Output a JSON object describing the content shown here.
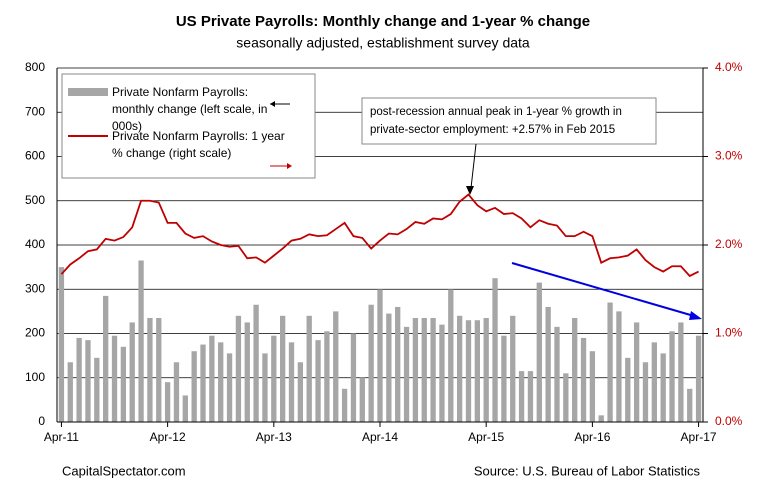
{
  "chart_data": {
    "type": "bar",
    "title": "US Private Payrolls: Monthly change and 1-year % change",
    "subtitle": "seasonally adjusted, establishment survey data",
    "categories": [
      "Apr-11",
      null,
      null,
      null,
      null,
      null,
      null,
      null,
      null,
      null,
      null,
      null,
      "Apr-12",
      null,
      null,
      null,
      null,
      null,
      null,
      null,
      null,
      null,
      null,
      null,
      "Apr-13",
      null,
      null,
      null,
      null,
      null,
      null,
      null,
      null,
      null,
      null,
      null,
      "Apr-14",
      null,
      null,
      null,
      null,
      null,
      null,
      null,
      null,
      null,
      null,
      null,
      "Apr-15",
      null,
      null,
      null,
      null,
      null,
      null,
      null,
      null,
      null,
      null,
      null,
      "Apr-16",
      null,
      null,
      null,
      null,
      null,
      null,
      null,
      null,
      null,
      null,
      null,
      "Apr-17"
    ],
    "series": [
      {
        "name": "Private Nonfarm Payrolls: monthly change (left scale, in 000s)",
        "type": "bar",
        "color": "#a6a6a6",
        "values": [
          350,
          135,
          190,
          185,
          145,
          285,
          195,
          170,
          225,
          365,
          235,
          235,
          90,
          135,
          60,
          160,
          175,
          195,
          180,
          155,
          240,
          225,
          265,
          155,
          195,
          240,
          180,
          135,
          240,
          185,
          205,
          250,
          75,
          200,
          100,
          265,
          300,
          245,
          260,
          215,
          235,
          235,
          235,
          220,
          300,
          240,
          230,
          230,
          235,
          325,
          195,
          240,
          115,
          115,
          315,
          260,
          215,
          110,
          235,
          190,
          160,
          15,
          270,
          250,
          145,
          225,
          135,
          180,
          155,
          205,
          225,
          75,
          195
        ]
      },
      {
        "name": "Private Nonfarm Payrolls:  1 year % change (right scale)",
        "type": "line",
        "axis": "y2",
        "color": "#c00000",
        "values": [
          1.67,
          1.78,
          1.85,
          1.93,
          1.95,
          2.07,
          2.05,
          2.09,
          2.2,
          2.5,
          2.5,
          2.48,
          2.25,
          2.25,
          2.13,
          2.08,
          2.1,
          2.04,
          2.0,
          1.98,
          1.99,
          1.85,
          1.86,
          1.8,
          1.88,
          1.96,
          2.05,
          2.07,
          2.12,
          2.1,
          2.11,
          2.18,
          2.25,
          2.1,
          2.08,
          1.96,
          2.05,
          2.13,
          2.12,
          2.18,
          2.26,
          2.24,
          2.3,
          2.29,
          2.35,
          2.49,
          2.57,
          2.45,
          2.38,
          2.42,
          2.35,
          2.36,
          2.3,
          2.2,
          2.28,
          2.24,
          2.22,
          2.1,
          2.1,
          2.15,
          2.1,
          1.8,
          1.85,
          1.86,
          1.88,
          1.95,
          1.83,
          1.75,
          1.7,
          1.76,
          1.76,
          1.65,
          1.7
        ]
      }
    ],
    "ylim": [
      0,
      800
    ],
    "yticks": [
      0,
      100,
      200,
      300,
      400,
      500,
      600,
      700,
      800
    ],
    "y2lim": [
      0,
      4
    ],
    "y2ticks": [
      {
        "value": 0,
        "label": "0.0%"
      },
      {
        "value": 1,
        "label": "1.0%"
      },
      {
        "value": 2,
        "label": "2.0%"
      },
      {
        "value": 3,
        "label": "3.0%"
      },
      {
        "value": 4,
        "label": "4.0%"
      }
    ],
    "grid": true,
    "legend": "top-left",
    "annotation": [
      "post-recession annual peak in 1-year % growth in",
      "private-sector employment:  +2.57% in Feb 2015"
    ],
    "footer_left": "CapitalSpectator.com",
    "footer_right": "Source: U.S. Bureau of Labor Statistics"
  }
}
